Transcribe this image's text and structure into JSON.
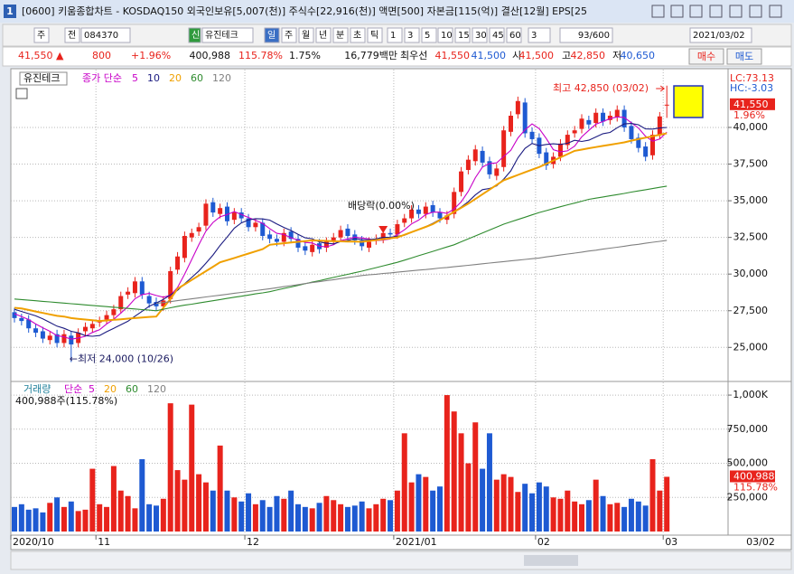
{
  "window": {
    "id": "1",
    "title": "[0600] 키움종합차트 - KOSDAQ150 외국인보유[5,007(천)] 주식수[22,916(천)] 액면[500] 자본금[115(억)] 결산[12월] EPS[25"
  },
  "toolbar": [
    "주",
    "전",
    "084370",
    "신",
    "유진테크",
    "일",
    "주",
    "월",
    "년",
    "분",
    "초",
    "틱",
    "1",
    "3",
    "5",
    "10",
    "15",
    "30",
    "45",
    "60",
    "3",
    "93/600",
    "2021/03/02"
  ],
  "quote": [
    "41,550 ▲",
    "800",
    "+1.96%",
    "400,988",
    "115.78%",
    "1.75%",
    "16,779백만",
    "최우선",
    "41,550",
    "41,500",
    "시",
    "41,500",
    "고",
    "42,850",
    "저",
    "40,650"
  ],
  "buttons": [
    "매수",
    "매도"
  ],
  "chart_data": {
    "type": "candlestick",
    "name": "유진테크",
    "categories": [
      "2020/10",
      null,
      null,
      null,
      null,
      null,
      null,
      null,
      null,
      null,
      null,
      null,
      "11",
      null,
      null,
      null,
      null,
      null,
      null,
      null,
      null,
      null,
      null,
      null,
      null,
      null,
      null,
      null,
      null,
      null,
      null,
      null,
      null,
      "12",
      null,
      null,
      null,
      null,
      null,
      null,
      null,
      null,
      null,
      null,
      null,
      null,
      null,
      null,
      null,
      null,
      null,
      null,
      null,
      null,
      "2021/01",
      null,
      null,
      null,
      null,
      null,
      null,
      null,
      null,
      null,
      null,
      null,
      null,
      null,
      null,
      null,
      null,
      null,
      null,
      null,
      "02",
      null,
      null,
      null,
      null,
      null,
      null,
      null,
      null,
      null,
      null,
      null,
      null,
      null,
      null,
      null,
      null,
      null,
      "03"
    ],
    "open": [
      27400,
      27000,
      26900,
      26300,
      26100,
      25500,
      25900,
      25300,
      25800,
      25300,
      26100,
      26300,
      26700,
      26900,
      27200,
      27600,
      28600,
      28700,
      29500,
      28500,
      28100,
      27800,
      28300,
      30300,
      31100,
      32500,
      32900,
      33300,
      34900,
      34100,
      34600,
      33700,
      34200,
      33800,
      33200,
      33500,
      32700,
      32400,
      32200,
      32900,
      32400,
      31900,
      31500,
      32100,
      31800,
      32300,
      32500,
      33100,
      32700,
      32300,
      31800,
      32300,
      32400,
      32800,
      32700,
      33500,
      33800,
      34400,
      34100,
      34700,
      34200,
      33700,
      34100,
      35600,
      37100,
      37700,
      38400,
      37700,
      36700,
      37300,
      39700,
      40900,
      41700,
      39700,
      39300,
      38300,
      37500,
      38000,
      38800,
      39600,
      39900,
      40500,
      40300,
      41000,
      40500,
      40700,
      41200,
      40100,
      39300,
      38700,
      38100,
      39500,
      41500
    ],
    "high": [
      27700,
      27300,
      27200,
      26600,
      26400,
      26100,
      26200,
      26200,
      26100,
      26300,
      26700,
      26900,
      27100,
      27500,
      27900,
      28800,
      29100,
      29800,
      29800,
      28800,
      28400,
      28500,
      30500,
      31500,
      32900,
      33100,
      33500,
      35100,
      35200,
      34800,
      34900,
      34500,
      34500,
      34100,
      33800,
      33800,
      33000,
      32700,
      33100,
      33200,
      32700,
      32200,
      32300,
      32400,
      32500,
      32800,
      33300,
      33400,
      33000,
      32600,
      32500,
      32700,
      33100,
      33100,
      33700,
      34100,
      34700,
      34700,
      34900,
      35000,
      34500,
      34300,
      35900,
      37300,
      38100,
      38800,
      38700,
      38000,
      37500,
      40100,
      41100,
      42100,
      42000,
      40000,
      39600,
      38600,
      38300,
      39200,
      39800,
      40100,
      40900,
      40800,
      41300,
      41300,
      41100,
      41500,
      41500,
      40400,
      39600,
      39000,
      39800,
      41050,
      42850
    ],
    "low": [
      26700,
      26500,
      26000,
      25700,
      25300,
      25200,
      25000,
      25000,
      24000,
      25000,
      25800,
      26000,
      26400,
      26600,
      26900,
      27300,
      28300,
      28400,
      28300,
      27700,
      27500,
      27500,
      28000,
      30000,
      30800,
      32200,
      32600,
      33000,
      33900,
      33800,
      33300,
      33400,
      33500,
      32900,
      32900,
      32300,
      32100,
      31900,
      31900,
      32100,
      31500,
      31300,
      31200,
      31400,
      31500,
      32000,
      32200,
      32300,
      32000,
      31600,
      31500,
      32000,
      32100,
      32400,
      32400,
      33200,
      33500,
      33800,
      33800,
      33900,
      33500,
      33400,
      33800,
      35300,
      36800,
      37400,
      37300,
      36500,
      36400,
      37000,
      39400,
      40600,
      39300,
      38900,
      37900,
      37100,
      37200,
      37700,
      38500,
      39300,
      39600,
      39900,
      40000,
      40100,
      40200,
      40400,
      39700,
      38900,
      38300,
      37700,
      37800,
      39200,
      40650
    ],
    "close": [
      27000,
      26800,
      26300,
      26000,
      25600,
      25800,
      25300,
      25900,
      25200,
      26000,
      26400,
      26600,
      26800,
      27200,
      27600,
      28500,
      28800,
      29500,
      28600,
      28000,
      27800,
      28200,
      30200,
      31200,
      32600,
      32800,
      33200,
      34800,
      34200,
      34500,
      33600,
      34200,
      33800,
      33200,
      33500,
      32600,
      32400,
      32200,
      32800,
      32400,
      31800,
      31600,
      32000,
      31700,
      32200,
      32500,
      33000,
      32600,
      32300,
      31900,
      32200,
      32400,
      32800,
      32700,
      33400,
      33800,
      34400,
      34100,
      34600,
      34200,
      33800,
      34000,
      35600,
      37000,
      37800,
      38500,
      37600,
      36800,
      37200,
      39800,
      40800,
      41800,
      39600,
      39200,
      38200,
      37400,
      38000,
      38900,
      39500,
      39800,
      40600,
      40200,
      41000,
      40400,
      40800,
      41200,
      40000,
      39200,
      38600,
      38000,
      39500,
      40750,
      41550
    ],
    "up_color": "#e8231c",
    "down_color": "#1e5ad2",
    "ylim": [
      22800,
      43450
    ],
    "yticks": [
      {
        "value": 25000,
        "label": "25,000"
      },
      {
        "value": 27500,
        "label": "27,500"
      },
      {
        "value": 30000,
        "label": "30,000"
      },
      {
        "value": 32500,
        "label": "32,500"
      },
      {
        "value": 35000,
        "label": "35,000"
      },
      {
        "value": 37500,
        "label": "37,500"
      },
      {
        "value": 40000,
        "label": "40,000"
      }
    ],
    "grid": true,
    "ma_label": "종가 단순",
    "series": [
      {
        "name": "5",
        "color": "#c800c8",
        "values": [
          27300,
          27100,
          26900,
          26600,
          26340,
          26100,
          25800,
          25720,
          25560,
          25640,
          25760,
          26020,
          26200,
          26600,
          26920,
          27340,
          27780,
          28320,
          28600,
          28680,
          28540,
          28420,
          28560,
          29080,
          30000,
          31000,
          32000,
          32920,
          33520,
          33900,
          34060,
          34260,
          34060,
          33860,
          33660,
          33460,
          33100,
          32780,
          32700,
          32480,
          32320,
          32160,
          32120,
          31900,
          31860,
          32000,
          32280,
          32400,
          32520,
          32460,
          32400,
          32280,
          32320,
          32400,
          32700,
          33020,
          33420,
          33680,
          34060,
          34220,
          34220,
          34140,
          34440,
          34920,
          35640,
          36580,
          37300,
          37540,
          37580,
          38020,
          38440,
          39280,
          39840,
          40240,
          39920,
          39240,
          38480,
          38340,
          38400,
          38720,
          39360,
          39800,
          40220,
          40400,
          40600,
          40720,
          40680,
          40320,
          39960,
          39400,
          39060,
          39210,
          39680
        ]
      },
      {
        "name": "10",
        "color": "#1a1a80",
        "values": [
          27600,
          27450,
          27300,
          27150,
          26950,
          26700,
          26450,
          26300,
          26100,
          25990,
          25800,
          25760,
          25810,
          26070,
          26300,
          26550,
          26780,
          27130,
          27460,
          27810,
          28030,
          28270,
          28580,
          28890,
          29340,
          29770,
          30210,
          30740,
          31300,
          31950,
          32530,
          33130,
          33490,
          33690,
          33780,
          33760,
          33680,
          33420,
          33180,
          32970,
          32710,
          32470,
          32410,
          32190,
          32100,
          32060,
          32220,
          32280,
          32420,
          32350,
          32340,
          32400,
          32500,
          32500,
          32580,
          32650,
          32850,
          33040,
          33230,
          33460,
          33720,
          33900,
          34250,
          34570,
          34930,
          35400,
          35760,
          35840,
          36010,
          36470,
          37040,
          37930,
          38570,
          38910,
          38750,
          38840,
          38880,
          38840,
          38920,
          39120,
          39040,
          39130,
          39350,
          39570,
          39660,
          39980,
          40240,
          40270,
          40180,
          39900,
          39890,
          39960,
          40000
        ]
      },
      {
        "name": "20",
        "color": "#f0a000",
        "values": [
          27700,
          27650,
          27550,
          27450,
          27350,
          27250,
          27150,
          27100,
          27000,
          26950,
          26900,
          26850,
          26800,
          26840,
          26880,
          26920,
          26960,
          27000,
          27040,
          27080,
          27100,
          27700,
          28300,
          29000,
          29300,
          29600,
          29900,
          30200,
          30500,
          30800,
          30950,
          31100,
          31250,
          31400,
          31550,
          31700,
          32000,
          32050,
          32100,
          32150,
          32200,
          32250,
          32300,
          32280,
          32260,
          32240,
          32230,
          32220,
          32210,
          32200,
          32260,
          32320,
          32380,
          32440,
          32500,
          32680,
          32860,
          33040,
          33220,
          33400,
          33680,
          33960,
          34240,
          34520,
          34800,
          35120,
          35440,
          35760,
          36080,
          36400,
          36580,
          36760,
          36940,
          37120,
          37300,
          37520,
          37740,
          37960,
          38180,
          38400,
          38490,
          38580,
          38660,
          38740,
          38820,
          38900,
          38980,
          39100,
          39200,
          39300,
          39400,
          39500,
          39600
        ]
      },
      {
        "name": "60",
        "color": "#2e8b2e",
        "values": [
          28300,
          28260,
          28220,
          28180,
          28140,
          28100,
          28060,
          28020,
          27980,
          27940,
          27900,
          27860,
          27820,
          27780,
          27740,
          27700,
          27660,
          27620,
          27580,
          27540,
          27500,
          27600,
          27700,
          27800,
          27880,
          27950,
          28030,
          28110,
          28180,
          28260,
          28340,
          28420,
          28490,
          28570,
          28650,
          28720,
          28800,
          28910,
          29020,
          29120,
          29230,
          29340,
          29450,
          29550,
          29660,
          29770,
          29880,
          29980,
          30090,
          30200,
          30320,
          30440,
          30560,
          30680,
          30800,
          30950,
          31100,
          31250,
          31400,
          31550,
          31700,
          31850,
          32000,
          32200,
          32400,
          32600,
          32800,
          33000,
          33200,
          33400,
          33560,
          33720,
          33880,
          34040,
          34200,
          34330,
          34460,
          34590,
          34720,
          34840,
          34970,
          35100,
          35180,
          35260,
          35340,
          35420,
          35500,
          35590,
          35670,
          35750,
          35830,
          35920,
          36000
        ]
      },
      {
        "name": "120",
        "color": "#808080",
        "values": [
          null,
          null,
          null,
          null,
          null,
          null,
          null,
          null,
          null,
          null,
          null,
          null,
          null,
          null,
          null,
          null,
          null,
          null,
          null,
          null,
          28000,
          28060,
          28120,
          28190,
          28250,
          28310,
          28370,
          28440,
          28500,
          28560,
          28620,
          28690,
          28750,
          28810,
          28870,
          28940,
          29000,
          29070,
          29140,
          29210,
          29280,
          29350,
          29420,
          29480,
          29550,
          29620,
          29690,
          29760,
          29830,
          29900,
          29950,
          29990,
          30040,
          30080,
          30130,
          30180,
          30220,
          30270,
          30310,
          30360,
          30410,
          30450,
          30500,
          30550,
          30600,
          30650,
          30700,
          30750,
          30800,
          30850,
          30900,
          30950,
          31000,
          31050,
          31100,
          31170,
          31230,
          31300,
          31370,
          31430,
          31500,
          31570,
          31630,
          31700,
          31770,
          31830,
          31900,
          31970,
          32030,
          32100,
          32170,
          32230,
          32300
        ]
      }
    ],
    "annotations": {
      "high": "최고 42,850 (03/02)",
      "low": "←최저 24,000 (10/26)",
      "event": "배당락(0.00%)"
    },
    "right_labels": {
      "lc": "LC:73.13",
      "hc": "HC:-3.03",
      "price": "41,550",
      "change": "1.96%"
    },
    "volume": {
      "label": "거래량",
      "ma_label": "단순",
      "ma_names": [
        {
          "name": "5",
          "color": "#c800c8"
        },
        {
          "name": "20",
          "color": "#f0a000"
        },
        {
          "name": "60",
          "color": "#2e8b2e"
        },
        {
          "name": "120",
          "color": "#808080"
        }
      ],
      "summary": "400,988주(115.78%)",
      "last": "400,988",
      "ratio": "115.78%",
      "values": [
        180000,
        200000,
        160000,
        170000,
        140000,
        210000,
        250000,
        180000,
        220000,
        150000,
        160000,
        460000,
        200000,
        180000,
        480000,
        300000,
        260000,
        170000,
        530000,
        200000,
        190000,
        240000,
        940000,
        450000,
        380000,
        930000,
        420000,
        360000,
        300000,
        630000,
        300000,
        250000,
        220000,
        280000,
        200000,
        230000,
        180000,
        260000,
        240000,
        300000,
        200000,
        180000,
        170000,
        210000,
        260000,
        230000,
        200000,
        180000,
        190000,
        220000,
        170000,
        200000,
        240000,
        230000,
        300000,
        720000,
        360000,
        420000,
        400000,
        300000,
        330000,
        1000000,
        880000,
        720000,
        500000,
        800000,
        460000,
        720000,
        380000,
        420000,
        400000,
        290000,
        350000,
        280000,
        360000,
        330000,
        250000,
        240000,
        300000,
        220000,
        200000,
        230000,
        380000,
        260000,
        200000,
        210000,
        180000,
        240000,
        220000,
        190000,
        530000,
        300000,
        400988
      ],
      "ylim": [
        0,
        1080000
      ],
      "yticks": [
        {
          "value": 250000,
          "label": "250,000"
        },
        {
          "value": 500000,
          "label": "500,000"
        },
        {
          "value": 750000,
          "label": "750,000"
        },
        {
          "value": 1000000,
          "label": "1,000K"
        }
      ]
    },
    "last_date": "03/02"
  }
}
